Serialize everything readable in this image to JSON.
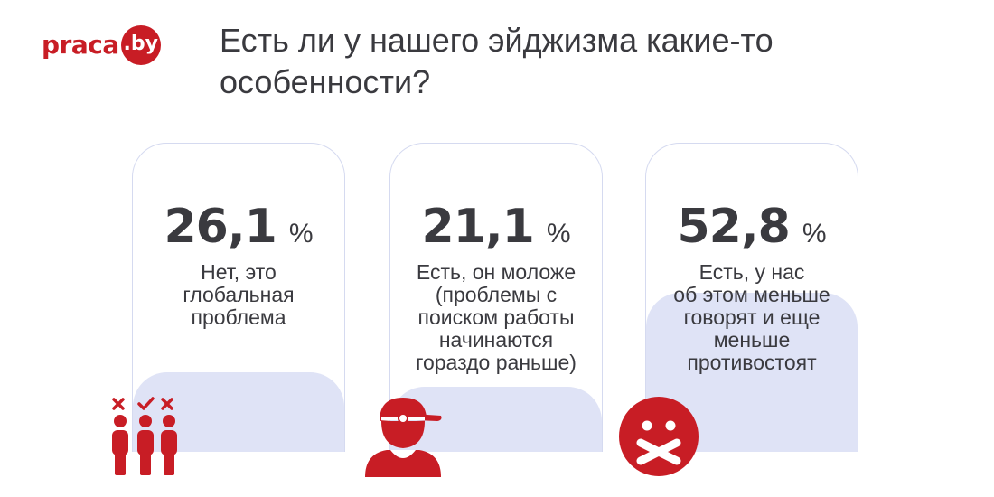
{
  "logo": {
    "text": "praca",
    "badge": ".by"
  },
  "title": "Есть ли у нашего эйджизма какие-то особенности?",
  "cards": [
    {
      "value": "26,1",
      "unit": "%",
      "description": "Нет, это\nглобальная\nпроблема",
      "icon": "people-selection-icon"
    },
    {
      "value": "21,1",
      "unit": "%",
      "description": "Есть, он моложе\n(проблемы с\nпоиском работы\nначинаются\nгораздо раньше)",
      "icon": "young-person-cap-icon"
    },
    {
      "value": "52,8",
      "unit": "%",
      "description": "Есть, у нас\nоб этом меньше\nговорят и еще\nменьше\nпротивостоят",
      "icon": "silenced-face-icon"
    }
  ],
  "colors": {
    "accent": "#c81d25",
    "text": "#3a3a3f",
    "card_fill": "#dfe3f6",
    "card_border": "#d5daf0"
  }
}
